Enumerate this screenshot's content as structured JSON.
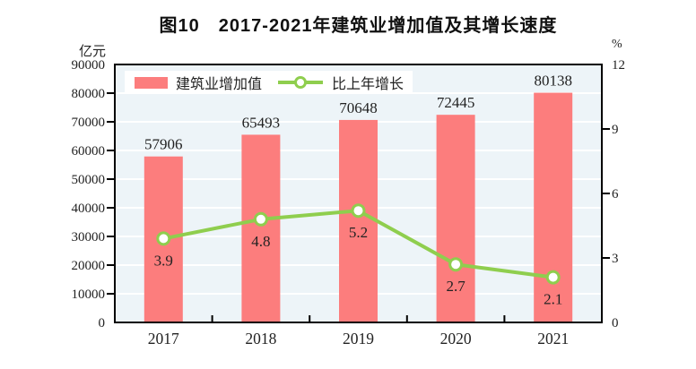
{
  "chart_data": {
    "type": "bar",
    "title": "图10　2017-2021年建筑业增加值及其增长速度",
    "categories": [
      "2017",
      "2018",
      "2019",
      "2020",
      "2021"
    ],
    "series": [
      {
        "name": "建筑业增加值",
        "type": "bar",
        "axis": "left",
        "values": [
          57906,
          65493,
          70648,
          72445,
          80138
        ]
      },
      {
        "name": "比上年增长",
        "type": "line",
        "axis": "right",
        "values": [
          3.9,
          4.8,
          5.2,
          2.7,
          2.1
        ]
      }
    ],
    "ylabel": "亿元",
    "y2label": "%",
    "ylim": [
      0,
      90000
    ],
    "y2lim": [
      0,
      12
    ],
    "yticks": [
      0,
      10000,
      20000,
      30000,
      40000,
      50000,
      60000,
      70000,
      80000,
      90000
    ],
    "y2ticks": [
      0,
      3,
      6,
      9,
      12
    ],
    "grid": true,
    "legend_position": "top-left-inside"
  },
  "colors": {
    "bar": "#fc7d7d",
    "line": "#8fce4e",
    "marker_fill": "#ffffff",
    "plot_bg": "#edf4f8",
    "grid": "#ffffff",
    "axis": "#000000",
    "text": "#222222"
  }
}
